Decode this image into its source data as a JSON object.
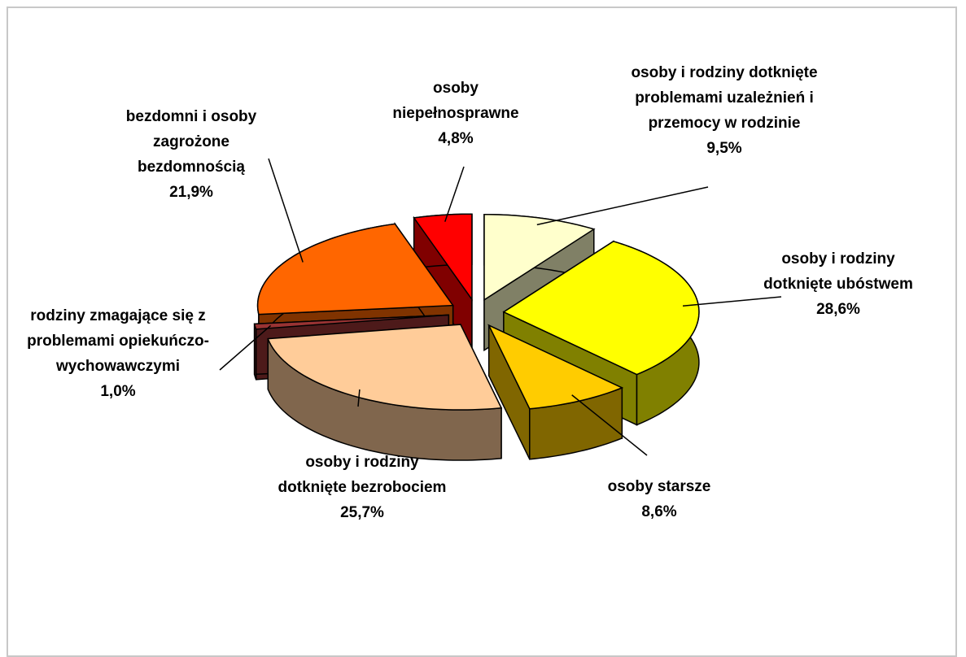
{
  "chart_data": {
    "type": "pie3d",
    "categories": [
      "osoby i rodziny dotknięte problemami uzależnień i przemocy w rodzinie",
      "osoby i rodziny dotknięte ubóstwem",
      "osoby starsze",
      "osoby i rodziny dotknięte bezrobociem",
      "rodziny zmagające się z problemami opiekuńczo-wychowawczymi",
      "bezdomni i osoby zagrożone bezdomnością",
      "osoby niepełnosprawne"
    ],
    "values": [
      9.5,
      28.6,
      8.6,
      25.7,
      1.0,
      21.9,
      4.8
    ],
    "value_labels": [
      "9,5%",
      "28,6%",
      "8,6%",
      "25,7%",
      "1,0%",
      "21,9%",
      "4,8%"
    ],
    "colors": [
      "#ffffcc",
      "#ffff00",
      "#ffcc00",
      "#ffcc99",
      "#993333",
      "#ff6600",
      "#ff0000"
    ]
  }
}
